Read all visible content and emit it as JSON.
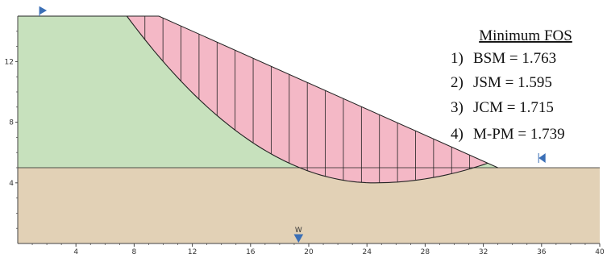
{
  "colors": {
    "upper_soil": "#c7e1bd",
    "lower_soil": "#e2d1b6",
    "slip_mass": "#f4b8c6",
    "boundary": "#222222",
    "marker": "#3b6fb6",
    "axis": "#444444"
  },
  "axes": {
    "x_min": 0,
    "x_max": 40,
    "y_min": 0,
    "y_max": 15,
    "x_ticks": [
      4,
      8,
      12,
      16,
      20,
      24,
      28,
      32,
      36,
      40
    ],
    "x_tick_labels": [
      "4",
      "8",
      "12",
      "16",
      "20",
      "24",
      "28",
      "32",
      "36",
      "40"
    ],
    "y_ticks": [
      4,
      8,
      12
    ],
    "y_tick_labels": [
      "4",
      "8",
      "12"
    ]
  },
  "geometry": {
    "crest_end_x": 9.7,
    "toe_x": 33.0,
    "ground_y": 15.0,
    "layer_y": 5.0,
    "slip_entry_x": 7.5,
    "slip_exit_x": 32.3,
    "slip_bottom_x": 24.5,
    "slip_bottom_y": 4.0,
    "slice_count": 20
  },
  "markers": {
    "left_limit_x": 1.5,
    "right_limit_x": 35.8,
    "right_limit_y": 5.0,
    "water_x": 19.3,
    "water_label": "W"
  },
  "fos_box": {
    "title": "Minimum FOS",
    "entries": [
      {
        "num": "1)",
        "text": "BSM = 1.763"
      },
      {
        "num": "2)",
        "text": "JSM = 1.595"
      },
      {
        "num": "3)",
        "text": "JCM = 1.715"
      },
      {
        "num": "4)",
        "text": "M-PM = 1.739"
      }
    ]
  }
}
